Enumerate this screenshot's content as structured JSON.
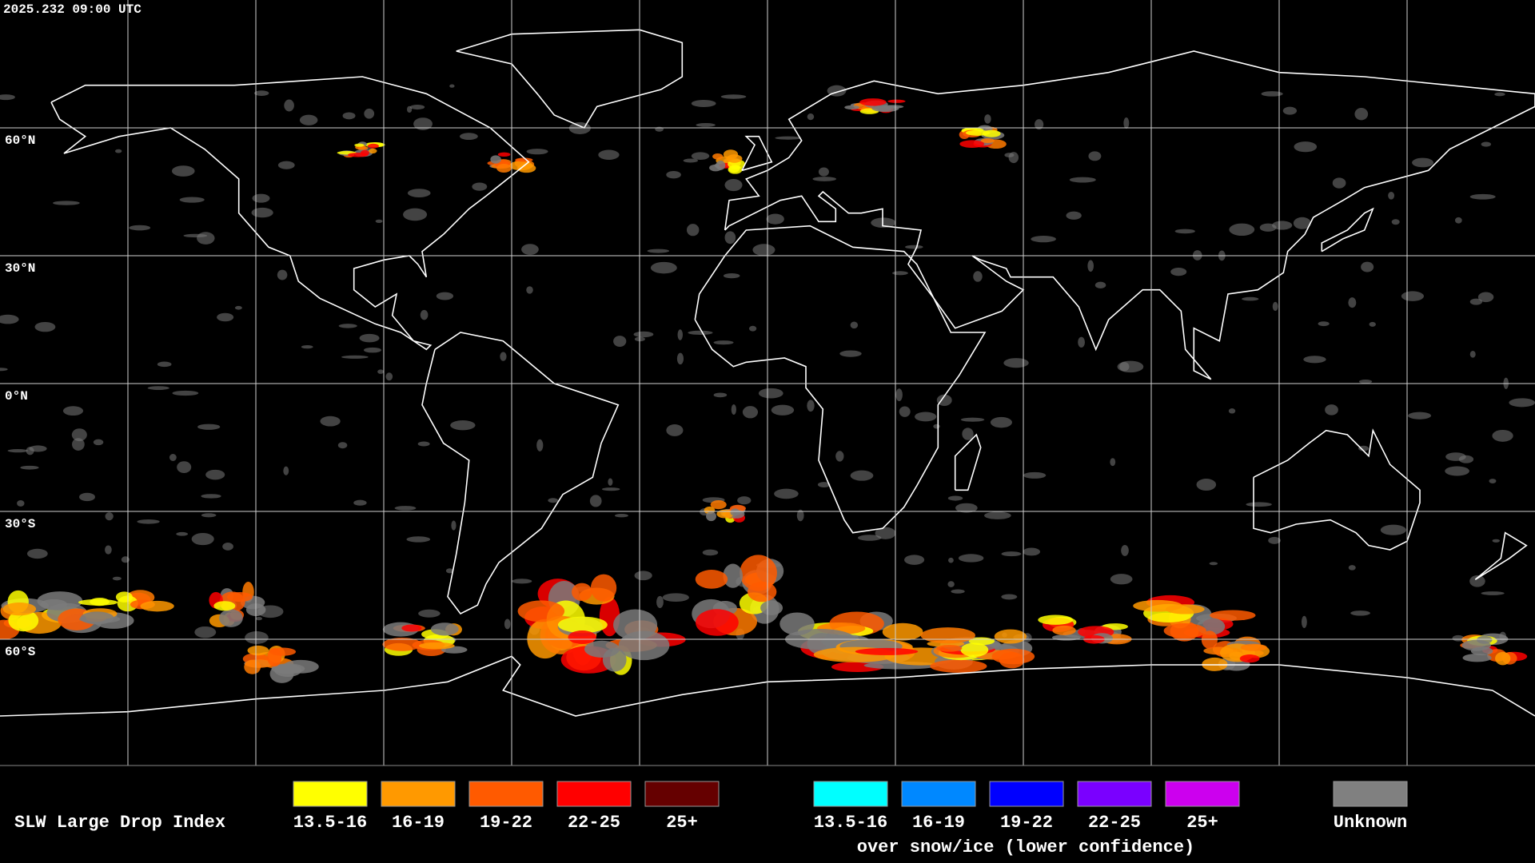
{
  "header": {
    "timestamp": "2025.232 09:00 UTC"
  },
  "map": {
    "latitude_labels": [
      "60°N",
      "30°N",
      "0°N",
      "30°S",
      "60°S"
    ]
  },
  "legend": {
    "title": "SLW Large Drop Index",
    "items": [
      {
        "label": "13.5-16",
        "color": "#ffff00"
      },
      {
        "label": "16-19",
        "color": "#ff9900"
      },
      {
        "label": "19-22",
        "color": "#ff5a00"
      },
      {
        "label": "22-25",
        "color": "#ff0000"
      },
      {
        "label": "25+",
        "color": "#650000"
      }
    ],
    "snow_ice_items": [
      {
        "label": "13.5-16",
        "color": "#00ffff"
      },
      {
        "label": "16-19",
        "color": "#0088ff"
      },
      {
        "label": "19-22",
        "color": "#0000ff"
      },
      {
        "label": "22-25",
        "color": "#7a00ff"
      },
      {
        "label": "25+",
        "color": "#cc00ee"
      }
    ],
    "snow_ice_caption": "over snow/ice (lower confidence)",
    "unknown": {
      "label": "Unknown",
      "color": "#808080"
    }
  }
}
